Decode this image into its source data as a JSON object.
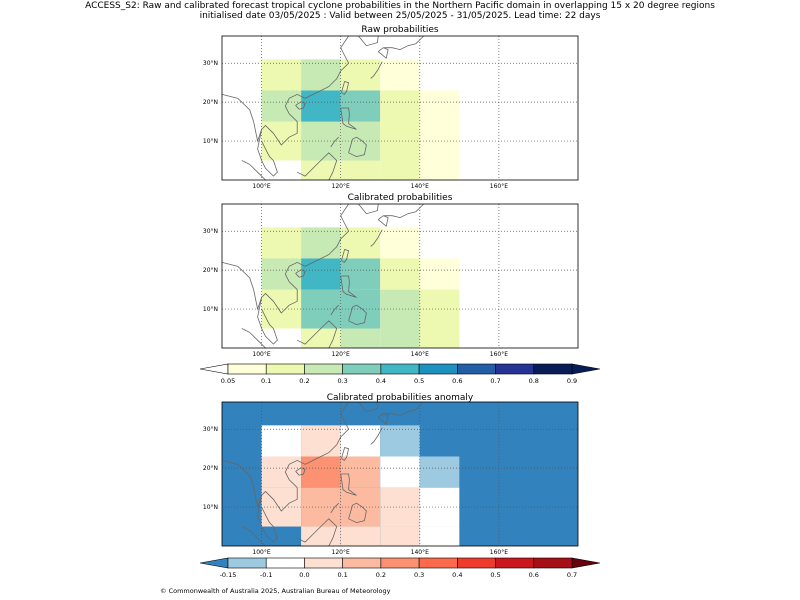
{
  "header": {
    "line1": "ACCESS_S2: Raw and calibrated forecast tropical cyclone probabilities in the Northern Pacific domain in overlapping 15 x 20 degree regions",
    "line2": "initialised date 03/05/2025 :  Valid between 25/05/2025 - 31/05/2025. Lead time: 22 days"
  },
  "footer": {
    "credit": "© Commonwealth of Australia 2025, Australian Bureau of Meteorology"
  },
  "axes": {
    "x_ticks": [
      {
        "value": 100,
        "label": "100°E"
      },
      {
        "value": 120,
        "label": "120°E"
      },
      {
        "value": 140,
        "label": "140°E"
      },
      {
        "value": 160,
        "label": "160°E"
      }
    ],
    "y_ticks": [
      {
        "value": 10,
        "label": "10°N"
      },
      {
        "value": 20,
        "label": "20°N"
      },
      {
        "value": 30,
        "label": "30°N"
      }
    ],
    "lon_range": [
      90,
      180
    ],
    "lat_range": [
      0,
      37
    ]
  },
  "colors": {
    "prob_levels": [
      0.05,
      0.1,
      0.2,
      0.3,
      0.4,
      0.5,
      0.6,
      0.7,
      0.8,
      0.9
    ],
    "prob_colors": [
      "#ffffd9",
      "#edf8b1",
      "#c7e9b4",
      "#7fcdbb",
      "#41b6c4",
      "#1d91c0",
      "#225ea8",
      "#253494",
      "#081d58"
    ],
    "prob_under": "#ffffff",
    "prob_over": "#081d58",
    "anom_levels": [
      -0.15,
      -0.1,
      0.0,
      0.1,
      0.2,
      0.3,
      0.4,
      0.5,
      0.6,
      0.7
    ],
    "anom_colors": [
      "#9ecae1",
      "#ffffff",
      "#fee0d2",
      "#fcbba1",
      "#fc9272",
      "#fb6a4a",
      "#ef3b2c",
      "#cb181d",
      "#a50f15"
    ],
    "anom_under": "#3182bd",
    "anom_over": "#67000d",
    "coast": "#666666"
  },
  "colorbars": {
    "prob_labels": [
      "0.05",
      "0.1",
      "0.2",
      "0.3",
      "0.4",
      "0.5",
      "0.6",
      "0.7",
      "0.8",
      "0.9"
    ],
    "anom_labels": [
      "-0.15",
      "-0.1",
      "0.0",
      "0.1",
      "0.2",
      "0.3",
      "0.4",
      "0.5",
      "0.6",
      "0.7"
    ]
  },
  "chart_data": [
    {
      "type": "heatmap",
      "title": "Raw probabilities",
      "cells": [
        {
          "lon": [
            100,
            110
          ],
          "lat": [
            0,
            5
          ],
          "value": 0.0
        },
        {
          "lon": [
            110,
            120
          ],
          "lat": [
            0,
            5
          ],
          "value": 0.15
        },
        {
          "lon": [
            120,
            130
          ],
          "lat": [
            0,
            5
          ],
          "value": 0.15
        },
        {
          "lon": [
            130,
            140
          ],
          "lat": [
            0,
            5
          ],
          "value": 0.15
        },
        {
          "lon": [
            140,
            150
          ],
          "lat": [
            0,
            5
          ],
          "value": 0.07
        },
        {
          "lon": [
            100,
            110
          ],
          "lat": [
            5,
            15
          ],
          "value": 0.15
        },
        {
          "lon": [
            110,
            120
          ],
          "lat": [
            5,
            15
          ],
          "value": 0.25
        },
        {
          "lon": [
            120,
            130
          ],
          "lat": [
            5,
            15
          ],
          "value": 0.25
        },
        {
          "lon": [
            130,
            140
          ],
          "lat": [
            5,
            15
          ],
          "value": 0.15
        },
        {
          "lon": [
            140,
            150
          ],
          "lat": [
            5,
            15
          ],
          "value": 0.07
        },
        {
          "lon": [
            100,
            110
          ],
          "lat": [
            15,
            23
          ],
          "value": 0.25
        },
        {
          "lon": [
            110,
            120
          ],
          "lat": [
            15,
            23
          ],
          "value": 0.45
        },
        {
          "lon": [
            120,
            130
          ],
          "lat": [
            15,
            23
          ],
          "value": 0.35
        },
        {
          "lon": [
            130,
            140
          ],
          "lat": [
            15,
            23
          ],
          "value": 0.15
        },
        {
          "lon": [
            140,
            150
          ],
          "lat": [
            15,
            23
          ],
          "value": 0.07
        },
        {
          "lon": [
            100,
            110
          ],
          "lat": [
            23,
            31
          ],
          "value": 0.15
        },
        {
          "lon": [
            110,
            120
          ],
          "lat": [
            23,
            31
          ],
          "value": 0.25
        },
        {
          "lon": [
            120,
            130
          ],
          "lat": [
            23,
            31
          ],
          "value": 0.15
        },
        {
          "lon": [
            130,
            140
          ],
          "lat": [
            23,
            31
          ],
          "value": 0.07
        }
      ]
    },
    {
      "type": "heatmap",
      "title": "Calibrated probabilities",
      "cells": [
        {
          "lon": [
            100,
            110
          ],
          "lat": [
            0,
            5
          ],
          "value": 0.0
        },
        {
          "lon": [
            110,
            120
          ],
          "lat": [
            0,
            5
          ],
          "value": 0.15
        },
        {
          "lon": [
            120,
            130
          ],
          "lat": [
            0,
            5
          ],
          "value": 0.25
        },
        {
          "lon": [
            130,
            140
          ],
          "lat": [
            0,
            5
          ],
          "value": 0.25
        },
        {
          "lon": [
            140,
            150
          ],
          "lat": [
            0,
            5
          ],
          "value": 0.15
        },
        {
          "lon": [
            100,
            110
          ],
          "lat": [
            5,
            15
          ],
          "value": 0.15
        },
        {
          "lon": [
            110,
            120
          ],
          "lat": [
            5,
            15
          ],
          "value": 0.35
        },
        {
          "lon": [
            120,
            130
          ],
          "lat": [
            5,
            15
          ],
          "value": 0.35
        },
        {
          "lon": [
            130,
            140
          ],
          "lat": [
            5,
            15
          ],
          "value": 0.25
        },
        {
          "lon": [
            140,
            150
          ],
          "lat": [
            5,
            15
          ],
          "value": 0.15
        },
        {
          "lon": [
            100,
            110
          ],
          "lat": [
            15,
            23
          ],
          "value": 0.25
        },
        {
          "lon": [
            110,
            120
          ],
          "lat": [
            15,
            23
          ],
          "value": 0.45
        },
        {
          "lon": [
            120,
            130
          ],
          "lat": [
            15,
            23
          ],
          "value": 0.35
        },
        {
          "lon": [
            130,
            140
          ],
          "lat": [
            15,
            23
          ],
          "value": 0.15
        },
        {
          "lon": [
            140,
            150
          ],
          "lat": [
            15,
            23
          ],
          "value": 0.07
        },
        {
          "lon": [
            100,
            110
          ],
          "lat": [
            23,
            31
          ],
          "value": 0.15
        },
        {
          "lon": [
            110,
            120
          ],
          "lat": [
            23,
            31
          ],
          "value": 0.25
        },
        {
          "lon": [
            120,
            130
          ],
          "lat": [
            23,
            31
          ],
          "value": 0.15
        },
        {
          "lon": [
            130,
            140
          ],
          "lat": [
            23,
            31
          ],
          "value": 0.07
        }
      ]
    },
    {
      "type": "heatmap",
      "title": "Calibrated probabilities anomaly",
      "background_value": -0.2,
      "cells": [
        {
          "lon": [
            100,
            110
          ],
          "lat": [
            0,
            5
          ],
          "value": -0.2
        },
        {
          "lon": [
            110,
            120
          ],
          "lat": [
            0,
            5
          ],
          "value": 0.05
        },
        {
          "lon": [
            120,
            130
          ],
          "lat": [
            0,
            5
          ],
          "value": 0.05
        },
        {
          "lon": [
            130,
            140
          ],
          "lat": [
            0,
            5
          ],
          "value": 0.05
        },
        {
          "lon": [
            140,
            150
          ],
          "lat": [
            0,
            5
          ],
          "value": -0.05
        },
        {
          "lon": [
            100,
            110
          ],
          "lat": [
            5,
            15
          ],
          "value": 0.05
        },
        {
          "lon": [
            110,
            120
          ],
          "lat": [
            5,
            15
          ],
          "value": 0.15
        },
        {
          "lon": [
            120,
            130
          ],
          "lat": [
            5,
            15
          ],
          "value": 0.15
        },
        {
          "lon": [
            130,
            140
          ],
          "lat": [
            5,
            15
          ],
          "value": 0.05
        },
        {
          "lon": [
            140,
            150
          ],
          "lat": [
            5,
            15
          ],
          "value": -0.05
        },
        {
          "lon": [
            100,
            110
          ],
          "lat": [
            15,
            23
          ],
          "value": 0.05
        },
        {
          "lon": [
            110,
            120
          ],
          "lat": [
            15,
            23
          ],
          "value": 0.25
        },
        {
          "lon": [
            120,
            130
          ],
          "lat": [
            15,
            23
          ],
          "value": 0.15
        },
        {
          "lon": [
            130,
            140
          ],
          "lat": [
            15,
            23
          ],
          "value": -0.05
        },
        {
          "lon": [
            140,
            150
          ],
          "lat": [
            15,
            23
          ],
          "value": -0.12
        },
        {
          "lon": [
            100,
            110
          ],
          "lat": [
            23,
            31
          ],
          "value": -0.05
        },
        {
          "lon": [
            110,
            120
          ],
          "lat": [
            23,
            31
          ],
          "value": 0.05
        },
        {
          "lon": [
            120,
            130
          ],
          "lat": [
            23,
            31
          ],
          "value": -0.05
        },
        {
          "lon": [
            130,
            140
          ],
          "lat": [
            23,
            31
          ],
          "value": -0.12
        }
      ]
    }
  ]
}
